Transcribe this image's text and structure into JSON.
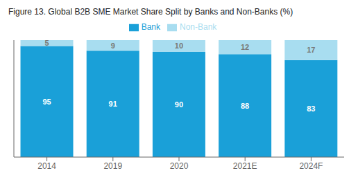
{
  "chart_data": {
    "type": "bar",
    "title": "Figure 13. Global B2B SME Market Share Split by Banks and Non-Banks (%)",
    "categories": [
      "2014",
      "2019",
      "2020",
      "2021E",
      "2024F"
    ],
    "series": [
      {
        "name": "Bank",
        "color": "#1aa0d8",
        "values": [
          95,
          91,
          90,
          88,
          83
        ]
      },
      {
        "name": "Non-Bank",
        "color": "#a8ddf0",
        "values": [
          5,
          9,
          10,
          12,
          17
        ]
      }
    ],
    "stacked": true,
    "data_labels": true,
    "ylim": [
      0,
      100
    ],
    "tick_labels": "x",
    "grid": false,
    "legend": "top"
  }
}
